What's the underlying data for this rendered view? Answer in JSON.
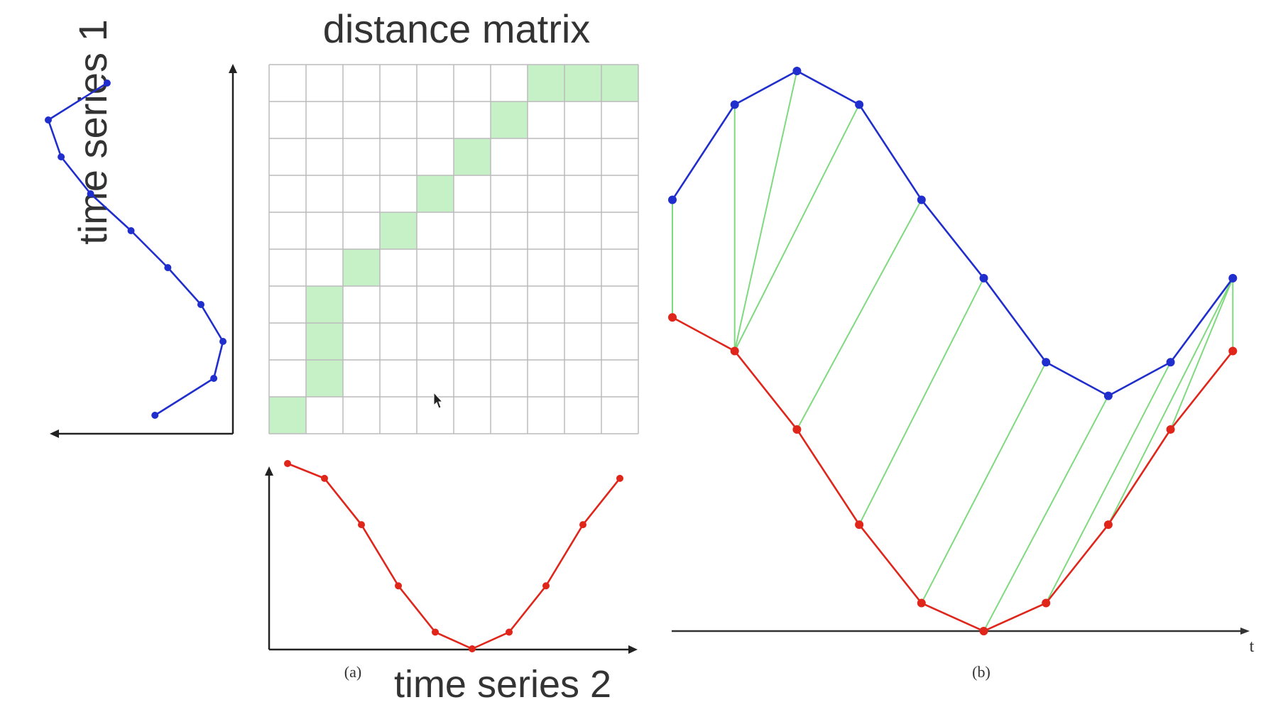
{
  "labels": {
    "matrix_title": "distance matrix",
    "series1_label": "time series 1",
    "series2_label": "time series 2",
    "panel_a": "(a)",
    "panel_b": "(b)",
    "t_axis": "t"
  },
  "colors": {
    "series1": "#1f2ecc",
    "series2": "#e0251b",
    "alignment": "#7fd97f",
    "path_cell": "#c6f0c6",
    "grid": "#bbbbbb",
    "axis": "#222222"
  },
  "distance_matrix": {
    "rows": 10,
    "cols": 10,
    "path_cells_row_from_top_col_from_left": [
      [
        9,
        0
      ],
      [
        8,
        1
      ],
      [
        7,
        1
      ],
      [
        6,
        1
      ],
      [
        5,
        2
      ],
      [
        4,
        3
      ],
      [
        3,
        4
      ],
      [
        2,
        5
      ],
      [
        1,
        6
      ],
      [
        0,
        7
      ],
      [
        0,
        8
      ],
      [
        0,
        9
      ]
    ]
  },
  "chart_data": [
    {
      "type": "line",
      "series": [
        {
          "name": "time series 1",
          "values": [
            0.58,
            0.9,
            0.95,
            0.83,
            0.65,
            0.45,
            0.23,
            0.07,
            0.0,
            0.32
          ]
        }
      ]
    },
    {
      "type": "line",
      "series": [
        {
          "name": "time series 2",
          "values": [
            1.0,
            0.92,
            0.67,
            0.34,
            0.09,
            0.0,
            0.09,
            0.34,
            0.67,
            0.92
          ]
        }
      ]
    },
    {
      "type": "line",
      "series": [
        {
          "name": "time series 1",
          "values": [
            0.77,
            0.94,
            1.0,
            0.94,
            0.77,
            0.63,
            0.48,
            0.42,
            0.48,
            0.63
          ]
        },
        {
          "name": "time series 2",
          "values": [
            0.56,
            0.5,
            0.36,
            0.19,
            0.05,
            0.0,
            0.05,
            0.19,
            0.36,
            0.5
          ]
        }
      ],
      "alignments": [
        [
          0,
          0
        ],
        [
          1,
          1
        ],
        [
          2,
          1
        ],
        [
          3,
          1
        ],
        [
          4,
          2
        ],
        [
          5,
          3
        ],
        [
          6,
          4
        ],
        [
          7,
          5
        ],
        [
          8,
          6
        ],
        [
          9,
          7
        ],
        [
          9,
          8
        ],
        [
          9,
          9
        ]
      ]
    }
  ]
}
